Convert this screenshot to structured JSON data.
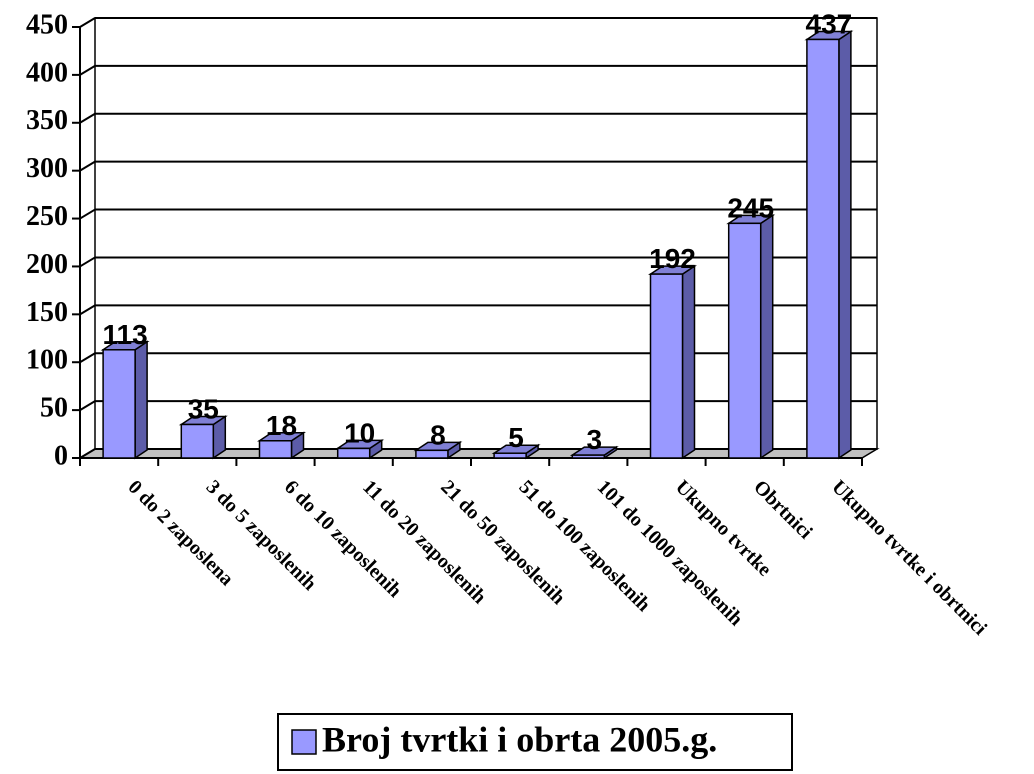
{
  "chart_data": {
    "type": "bar",
    "categories": [
      "0 do 2 zaposlena",
      "3 do 5 zaposlenih",
      "6 do 10 zaposlenih",
      "11 do 20 zaposlenih",
      "21 do 50 zaposlenih",
      "51 do 100 zaposlenih",
      "101 do 1000 zaposlenih",
      "Ukupno tvrtke",
      "Obrtnici",
      "Ukupno tvrtke i obrtnici"
    ],
    "series": [
      {
        "name": "Broj tvrtki i obrta 2005.g.",
        "color": "#9999ff",
        "values": [
          113,
          35,
          18,
          10,
          8,
          5,
          3,
          192,
          245,
          437
        ]
      }
    ],
    "ylim": [
      0,
      450
    ],
    "yticks": [
      0,
      50,
      100,
      150,
      200,
      250,
      300,
      350,
      400,
      450
    ],
    "grid": true,
    "legend": "bottom"
  }
}
